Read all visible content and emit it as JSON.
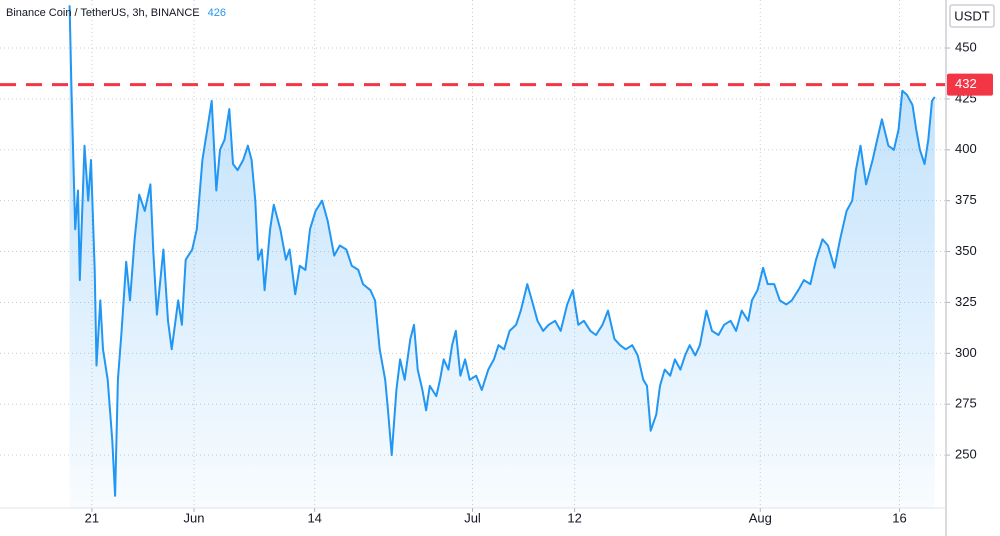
{
  "chart_data": {
    "type": "line",
    "title": "Binance Coin / TetherUS, 3h, BINANCE",
    "last_value": 426,
    "y_axis_label": "USDT",
    "grid": true,
    "xlim": [
      -9.9,
      91.9
    ],
    "ylim": [
      224,
      473.6
    ],
    "yticks": [
      250,
      275,
      300,
      325,
      350,
      375,
      400,
      425,
      450
    ],
    "xticks": [
      {
        "value": 0,
        "label": "21"
      },
      {
        "value": 11,
        "label": "Jun"
      },
      {
        "value": 24,
        "label": "14"
      },
      {
        "value": 41,
        "label": "Jul"
      },
      {
        "value": 52,
        "label": "12"
      },
      {
        "value": 72,
        "label": "Aug"
      },
      {
        "value": 87,
        "label": "16"
      }
    ],
    "hline": {
      "value": 432,
      "color": "#f23645"
    },
    "x": [
      -2.4,
      -2.2,
      -1.8,
      -1.5,
      -1.3,
      -0.8,
      -0.4,
      -0.1,
      0.3,
      0.5,
      0.9,
      1.2,
      1.7,
      2.2,
      2.5,
      2.8,
      3.2,
      3.7,
      4.1,
      4.6,
      5.1,
      5.7,
      6.3,
      6.6,
      7.0,
      7.7,
      8.2,
      8.6,
      9.3,
      9.7,
      10.1,
      10.8,
      11.3,
      11.9,
      12.5,
      12.9,
      13.4,
      13.8,
      14.3,
      14.8,
      15.2,
      15.7,
      16.3,
      16.8,
      17.2,
      17.6,
      17.9,
      18.3,
      18.6,
      19.2,
      19.6,
      20.3,
      20.9,
      21.3,
      21.9,
      22.4,
      23.0,
      23.5,
      24.1,
      24.8,
      25.4,
      26.1,
      26.7,
      27.4,
      28.0,
      28.7,
      29.2,
      30.0,
      30.5,
      31.0,
      31.6,
      31.9,
      32.3,
      32.8,
      33.2,
      33.7,
      34.3,
      34.7,
      35.1,
      35.6,
      36.0,
      36.4,
      37.1,
      37.5,
      37.9,
      38.4,
      38.8,
      39.2,
      39.7,
      40.2,
      40.7,
      41.4,
      42.0,
      42.7,
      43.3,
      43.8,
      44.4,
      45.0,
      45.7,
      46.2,
      46.9,
      47.4,
      48.0,
      48.6,
      49.2,
      49.9,
      50.5,
      51.2,
      51.8,
      52.4,
      53.0,
      53.7,
      54.3,
      55.0,
      55.6,
      56.3,
      56.9,
      57.5,
      58.2,
      58.8,
      59.4,
      59.8,
      60.2,
      60.8,
      61.2,
      61.7,
      62.3,
      62.8,
      63.4,
      63.9,
      64.4,
      65.0,
      65.5,
      66.2,
      66.8,
      67.5,
      68.1,
      68.8,
      69.4,
      70.0,
      70.7,
      71.1,
      71.7,
      72.3,
      72.8,
      73.5,
      74.1,
      74.8,
      75.4,
      76.1,
      76.7,
      77.4,
      78.0,
      78.7,
      79.3,
      80.0,
      80.6,
      81.3,
      81.9,
      82.3,
      82.8,
      83.4,
      84.1,
      84.6,
      85.1,
      85.8,
      86.4,
      86.9,
      87.3,
      87.8,
      88.4,
      88.8,
      89.2,
      89.7,
      90.1,
      90.5,
      90.8
    ],
    "series": [
      {
        "color": "#2196f3",
        "values": [
          471,
          429,
          361,
          380,
          336,
          402,
          375,
          395,
          341,
          294,
          326,
          302,
          287,
          257,
          230,
          287,
          311,
          345,
          326,
          356,
          378,
          370,
          383,
          351,
          319,
          351,
          316,
          302,
          326,
          314,
          346,
          351,
          361,
          395,
          412,
          424,
          380,
          400,
          405,
          420,
          393,
          390,
          395,
          402,
          395,
          375,
          346,
          351,
          331,
          361,
          373,
          361,
          346,
          351,
          329,
          343,
          341,
          361,
          370,
          375,
          365,
          348,
          353,
          351,
          343,
          341,
          334,
          331,
          326,
          302,
          287,
          272,
          250,
          282,
          297,
          287,
          307,
          314,
          292,
          282,
          272,
          284,
          279,
          287,
          297,
          292,
          304,
          311,
          289,
          297,
          287,
          289,
          282,
          292,
          297,
          304,
          302,
          311,
          314,
          321,
          334,
          326,
          316,
          311,
          314,
          316,
          311,
          324,
          331,
          314,
          316,
          311,
          309,
          314,
          321,
          307,
          304,
          302,
          304,
          299,
          287,
          284,
          262,
          270,
          284,
          292,
          289,
          297,
          292,
          299,
          304,
          299,
          304,
          321,
          311,
          309,
          314,
          316,
          311,
          321,
          316,
          326,
          331,
          342,
          334,
          334,
          326,
          324,
          326,
          331,
          336,
          334,
          346,
          356,
          353,
          342,
          356,
          370,
          375,
          390,
          402,
          383,
          395,
          405,
          415,
          402,
          400,
          410,
          429,
          427,
          422,
          410,
          400,
          393,
          405,
          424,
          426
        ]
      }
    ]
  }
}
